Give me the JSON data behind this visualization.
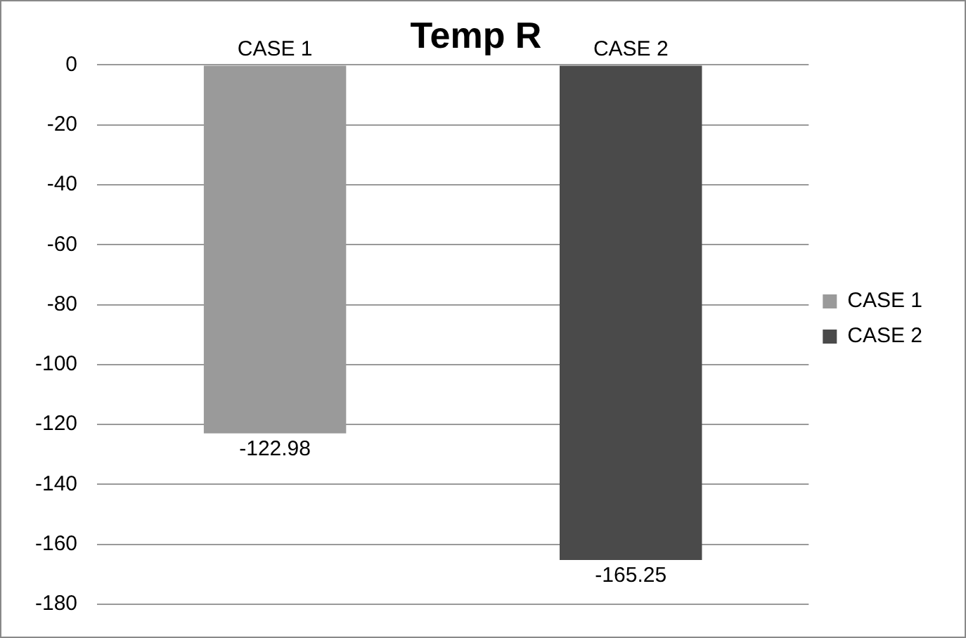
{
  "chart_data": {
    "type": "bar",
    "title": "Temp R",
    "categories": [
      "CASE 1",
      "CASE 2"
    ],
    "series": [
      {
        "name": "CASE 1",
        "color": "#9a9a9a",
        "values": [
          -122.98,
          null
        ]
      },
      {
        "name": "CASE 2",
        "color": "#4a4a4a",
        "values": [
          null,
          -165.25
        ]
      }
    ],
    "ylim": [
      -180,
      0
    ],
    "yticks": [
      0,
      -20,
      -40,
      -60,
      -80,
      -100,
      -120,
      -140,
      -160,
      -180
    ],
    "grid": "y",
    "legend": "right",
    "data_labels": true
  }
}
